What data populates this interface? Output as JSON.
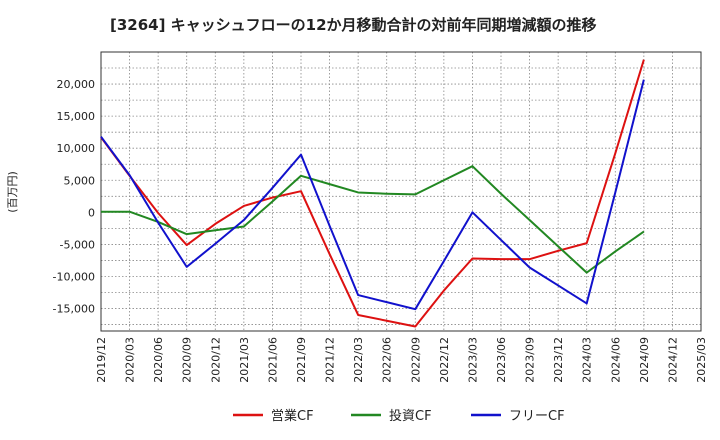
{
  "chart_data": {
    "type": "line",
    "title": "[3264]  キャッシュフローの12か月移動合計の対前年同期増減額の推移",
    "ylabel": "(百万円)",
    "xlabel": "",
    "ylim": [
      -18500,
      25000
    ],
    "yticks": [
      -15000,
      -10000,
      -5000,
      0,
      5000,
      10000,
      15000,
      20000
    ],
    "ytick_labels": [
      "-15,000",
      "-10,000",
      "-5,000",
      "0",
      "5,000",
      "10,000",
      "15,000",
      "20,000"
    ],
    "categories": [
      "2019/12",
      "2020/03",
      "2020/06",
      "2020/09",
      "2020/12",
      "2021/03",
      "2021/06",
      "2021/09",
      "2021/12",
      "2022/03",
      "2022/06",
      "2022/09",
      "2022/12",
      "2023/03",
      "2023/06",
      "2023/09",
      "2023/12",
      "2024/03",
      "2024/06",
      "2024/09",
      "2024/12",
      "2025/03"
    ],
    "grid": true,
    "legend_position": "bottom",
    "series": [
      {
        "name": "営業CF",
        "color": "#dd1111",
        "values": [
          11700,
          5700,
          -100,
          -5100,
          -1800,
          1000,
          2300,
          3300,
          -6500,
          -16000,
          -16900,
          -17800,
          -12200,
          -7200,
          -7300,
          -7300,
          -6000,
          -4800,
          9200,
          23800,
          null,
          null
        ]
      },
      {
        "name": "投資CF",
        "color": "#228822",
        "values": [
          100,
          100,
          -1500,
          -3400,
          -2800,
          -2200,
          1700,
          5700,
          4400,
          3100,
          2900,
          2800,
          5000,
          7200,
          2900,
          -1200,
          -5300,
          -9400,
          -6100,
          -3000,
          null,
          null
        ]
      },
      {
        "name": "フリーCF",
        "color": "#1111cc",
        "values": [
          11800,
          5800,
          -1600,
          -8500,
          -4900,
          -1200,
          3800,
          9000,
          -2100,
          -12900,
          -14000,
          -15100,
          -7600,
          0,
          -4300,
          -8600,
          -11400,
          -14200,
          3100,
          20700,
          null,
          null
        ]
      }
    ]
  }
}
